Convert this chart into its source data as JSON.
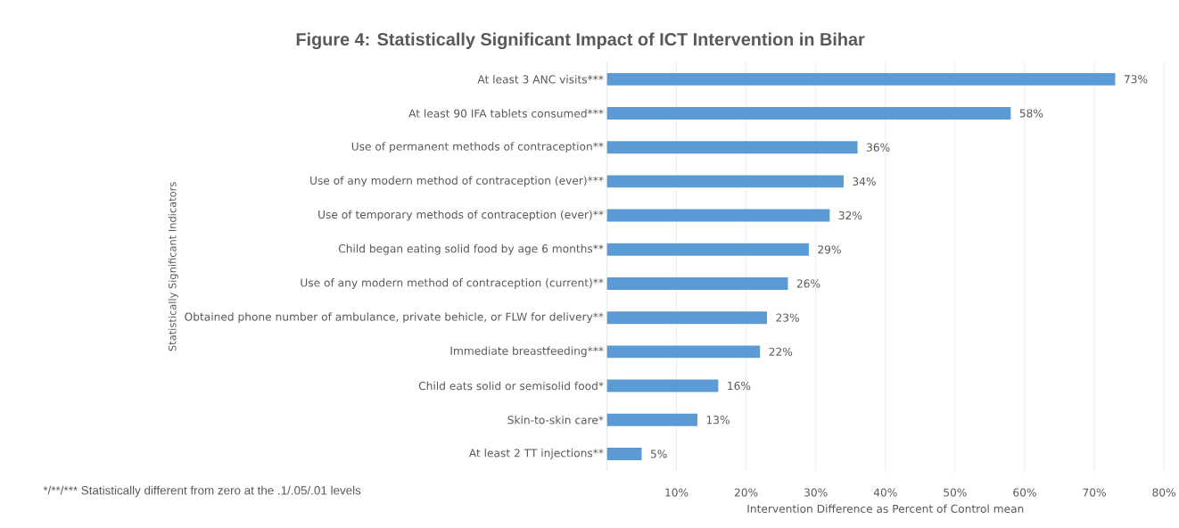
{
  "chart_data": {
    "type": "bar",
    "orientation": "horizontal",
    "title": "Figure 4: Statistically Significant Impact of ICT Intervention in Bihar",
    "xlabel": "Intervention Difference as Percent of Control mean",
    "ylabel": "Statistically Significant Indicators",
    "annotations": [
      "*/**/*** Statistically different from zero at the .1/.05/.01 levels"
    ],
    "categories": [
      "At least 3 ANC visits***",
      "At least 90 IFA tablets consumed***",
      "Use of permanent methods of contraception**",
      "Use of any modern method of contraception (ever)***",
      "Use of temporary methods of contraception (ever)**",
      "Child began eating solid food by age 6 months**",
      "Use of any modern method of contraception (current)**",
      "Obtained phone number of ambulance, private behicle, or FLW for delivery**",
      "Immediate breastfeeding***",
      "Child eats solid or semisolid food*",
      "Skin-to-skin care*",
      "At least 2 TT injections**"
    ],
    "values": [
      73,
      58,
      36,
      34,
      32,
      29,
      26,
      23,
      22,
      16,
      13,
      5
    ],
    "value_labels": [
      "73%",
      "58%",
      "36%",
      "34%",
      "32%",
      "29%",
      "26%",
      "23%",
      "22%",
      "16%",
      "13%",
      "5%"
    ],
    "color": "#5b9bd5",
    "xlim": [
      0,
      80
    ],
    "xticks": [
      {
        "value": 10,
        "label": "10%"
      },
      {
        "value": 20,
        "label": "20%"
      },
      {
        "value": 30,
        "label": "30%"
      },
      {
        "value": 40,
        "label": "40%"
      },
      {
        "value": 50,
        "label": "50%"
      },
      {
        "value": 60,
        "label": "60%"
      },
      {
        "value": 70,
        "label": "70%"
      },
      {
        "value": 80,
        "label": "80%"
      }
    ],
    "grid": "x"
  }
}
